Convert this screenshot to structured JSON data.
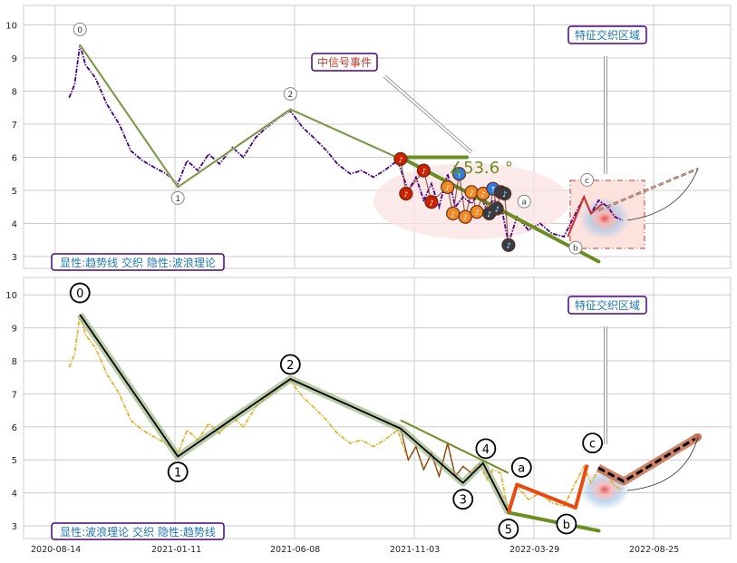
{
  "chart_data": [
    {
      "type": "line",
      "title": "",
      "xlabel": "",
      "ylabel": "",
      "ylim": [
        2.6,
        10.5
      ],
      "yticks": [
        3,
        4,
        5,
        6,
        7,
        8,
        9,
        10
      ],
      "grid": true,
      "colors": {
        "price": "#4b0082",
        "trend": "#556b2f",
        "trend_thick": "#6b8e23",
        "signal_box": "#fde3de",
        "marker_red": "#cc2200",
        "marker_orange": "#f08c28",
        "marker_dark": "#2f3e4a",
        "ellipse": "#f9d5d5",
        "label_border": "#4b0082",
        "label_text": "#1f77b4"
      },
      "price_points": [
        [
          "2020-09-01",
          7.8
        ],
        [
          "2020-09-08",
          8.2
        ],
        [
          "2020-09-15",
          9.4
        ],
        [
          "2020-09-22",
          8.8
        ],
        [
          "2020-10-05",
          8.4
        ],
        [
          "2020-10-20",
          7.6
        ],
        [
          "2020-11-05",
          7.0
        ],
        [
          "2020-11-20",
          6.2
        ],
        [
          "2020-12-05",
          5.9
        ],
        [
          "2020-12-20",
          5.7
        ],
        [
          "2021-01-05",
          5.5
        ],
        [
          "2021-01-20",
          5.2
        ],
        [
          "2021-02-01",
          5.9
        ],
        [
          "2021-02-15",
          5.6
        ],
        [
          "2021-03-01",
          6.1
        ],
        [
          "2021-03-15",
          5.8
        ],
        [
          "2021-04-01",
          6.3
        ],
        [
          "2021-04-15",
          6.0
        ],
        [
          "2021-05-01",
          6.6
        ],
        [
          "2021-05-15",
          6.9
        ],
        [
          "2021-06-01",
          7.2
        ],
        [
          "2021-06-15",
          7.4
        ],
        [
          "2021-07-01",
          6.9
        ],
        [
          "2021-07-15",
          6.6
        ],
        [
          "2021-08-01",
          6.2
        ],
        [
          "2021-08-15",
          5.8
        ],
        [
          "2021-09-01",
          5.5
        ],
        [
          "2021-09-15",
          5.6
        ],
        [
          "2021-10-01",
          5.4
        ],
        [
          "2021-10-15",
          5.6
        ],
        [
          "2021-11-01",
          5.9
        ],
        [
          "2021-11-15",
          5.0
        ],
        [
          "2021-11-25",
          5.4
        ],
        [
          "2021-12-05",
          4.7
        ],
        [
          "2021-12-15",
          5.2
        ],
        [
          "2021-12-25",
          4.5
        ],
        [
          "2022-01-05",
          5.5
        ],
        [
          "2022-01-15",
          4.5
        ],
        [
          "2022-01-25",
          4.8
        ],
        [
          "2022-02-05",
          4.6
        ],
        [
          "2022-02-15",
          4.9
        ],
        [
          "2022-02-25",
          4.4
        ],
        [
          "2022-03-05",
          4.7
        ],
        [
          "2022-03-15",
          4.6
        ],
        [
          "2022-03-25",
          3.4
        ],
        [
          "2022-04-05",
          4.2
        ],
        [
          "2022-04-20",
          3.8
        ],
        [
          "2022-05-05",
          4.0
        ],
        [
          "2022-05-20",
          3.7
        ],
        [
          "2022-06-05",
          3.6
        ],
        [
          "2022-06-20",
          4.3
        ],
        [
          "2022-07-01",
          4.8
        ],
        [
          "2022-07-10",
          4.3
        ],
        [
          "2022-07-20",
          4.7
        ],
        [
          "2022-08-01",
          4.5
        ],
        [
          "2022-08-10",
          4.2
        ],
        [
          "2022-08-20",
          4.1
        ]
      ],
      "wave_points": [
        {
          "label": "0",
          "date": "2020-09-15",
          "value": 9.4
        },
        {
          "label": "1",
          "date": "2021-01-20",
          "value": 5.1
        },
        {
          "label": "2",
          "date": "2021-06-15",
          "value": 7.45
        },
        {
          "label": "a",
          "date": "2022-04-05",
          "value": 4.2
        },
        {
          "label": "b",
          "date": "2022-06-20",
          "value": 3.6
        },
        {
          "label": "c",
          "date": "2022-07-05",
          "value": 4.85
        }
      ],
      "trendlines": [
        {
          "from": [
            "2021-11-05",
            6.0
          ],
          "to": [
            "2022-01-30",
            6.0
          ]
        },
        {
          "from": [
            "2021-11-05",
            6.0
          ],
          "to": [
            "2022-07-20",
            2.85
          ]
        }
      ],
      "angle_label": "∡53.6 °",
      "callouts": [
        {
          "text": "中信号事件"
        },
        {
          "text": "特征交织区域"
        }
      ],
      "corner_label": "显性:趋势线 交织 隐性:波浪理论",
      "markers": [
        {
          "date": "2021-11-05",
          "value": 5.95,
          "color": "red",
          "glyph": "♪"
        },
        {
          "date": "2021-11-12",
          "value": 4.9,
          "color": "red",
          "glyph": "♪"
        },
        {
          "date": "2021-12-05",
          "value": 5.6,
          "color": "red",
          "glyph": "♪"
        },
        {
          "date": "2021-12-15",
          "value": 4.65,
          "color": "red",
          "glyph": "♪"
        },
        {
          "date": "2022-01-05",
          "value": 5.1,
          "color": "orange",
          "glyph": "♪"
        },
        {
          "date": "2022-01-12",
          "value": 4.3,
          "color": "orange",
          "glyph": "♪"
        },
        {
          "date": "2022-01-20",
          "value": 5.5,
          "color": "blue",
          "glyph": "↑"
        },
        {
          "date": "2022-01-28",
          "value": 4.2,
          "color": "orange",
          "glyph": "♪"
        },
        {
          "date": "2022-02-05",
          "value": 4.95,
          "color": "orange",
          "glyph": "♪"
        },
        {
          "date": "2022-02-12",
          "value": 4.35,
          "color": "orange",
          "glyph": "♪"
        },
        {
          "date": "2022-02-20",
          "value": 4.9,
          "color": "orange",
          "glyph": "♪"
        },
        {
          "date": "2022-02-28",
          "value": 4.3,
          "color": "dark",
          "glyph": "♪"
        },
        {
          "date": "2022-03-05",
          "value": 5.05,
          "color": "blue",
          "glyph": "↑"
        },
        {
          "date": "2022-03-10",
          "value": 4.45,
          "color": "dark",
          "glyph": "♪"
        },
        {
          "date": "2022-03-15",
          "value": 4.95,
          "color": "dark",
          "glyph": "♪"
        },
        {
          "date": "2022-03-20",
          "value": 4.9,
          "color": "dark",
          "glyph": "♪"
        },
        {
          "date": "2022-03-25",
          "value": 3.35,
          "color": "dark",
          "glyph": "♪"
        }
      ]
    },
    {
      "type": "line",
      "title": "",
      "xlabel": "",
      "ylabel": "",
      "ylim": [
        2.6,
        10.5
      ],
      "yticks": [
        3,
        4,
        5,
        6,
        7,
        8,
        9,
        10
      ],
      "grid": true,
      "x_tick_labels": [
        "2020-08-14",
        "2021-01-11",
        "2021-06-08",
        "2021-11-03",
        "2022-03-29",
        "2022-08-25"
      ],
      "colors": {
        "price": "#e8b030",
        "wave": "#000000",
        "wave_band": "#8fae6f",
        "trend": "#6b8e23",
        "orange_path": "#e84a10",
        "projection": "#c87050"
      },
      "wave_points": [
        {
          "label": "0",
          "date": "2020-09-15",
          "value": 9.4
        },
        {
          "label": "1",
          "date": "2021-01-20",
          "value": 5.1
        },
        {
          "label": "2",
          "date": "2021-06-15",
          "value": 7.45
        },
        {
          "label": "3",
          "date": "2022-01-25",
          "value": 4.3
        },
        {
          "label": "4",
          "date": "2022-02-20",
          "value": 4.9
        },
        {
          "label": "5",
          "date": "2022-03-25",
          "value": 3.4
        },
        {
          "label": "a",
          "date": "2022-04-05",
          "value": 4.25
        },
        {
          "label": "b",
          "date": "2022-06-20",
          "value": 3.55
        },
        {
          "label": "c",
          "date": "2022-07-05",
          "value": 4.85
        }
      ],
      "callouts": [
        {
          "text": "特征交织区域"
        }
      ],
      "corner_label": "显性:波浪理论 交织 隐性:趋势线"
    }
  ]
}
